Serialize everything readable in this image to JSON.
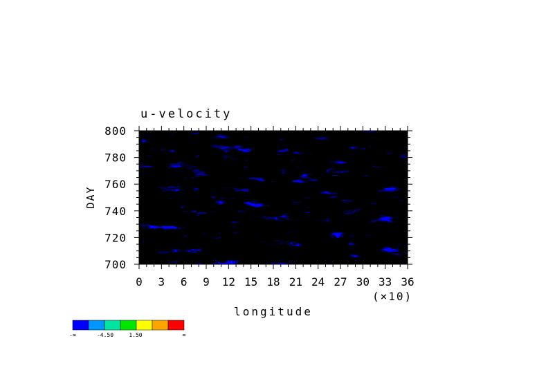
{
  "chart_data": {
    "type": "heatmap",
    "title": "u-velocity",
    "xlabel": "longitude",
    "ylabel": "DAY",
    "x_multiplier_label": "(×10)",
    "x_ticks": [
      0,
      3,
      6,
      9,
      12,
      15,
      18,
      21,
      24,
      27,
      30,
      33,
      36
    ],
    "x_tick_labels": [
      "0",
      "3",
      "6",
      "9",
      "12",
      "15",
      "18",
      "21",
      "24",
      "27",
      "30",
      "33",
      "36"
    ],
    "y_ticks": [
      700,
      720,
      740,
      760,
      780,
      800
    ],
    "y_tick_labels": [
      "700",
      "720",
      "740",
      "760",
      "780",
      "800"
    ],
    "xlim": [
      0,
      36
    ],
    "ylim": [
      700,
      800
    ],
    "grid": false,
    "colorbar": {
      "placement": "bottom-left",
      "colors": [
        "#0000ff",
        "#0096ff",
        "#00e6a0",
        "#00e600",
        "#ffff00",
        "#ffa500",
        "#ff0000"
      ],
      "labels": [
        "-∞",
        "-4.50",
        "1.50",
        "∞"
      ]
    }
  }
}
